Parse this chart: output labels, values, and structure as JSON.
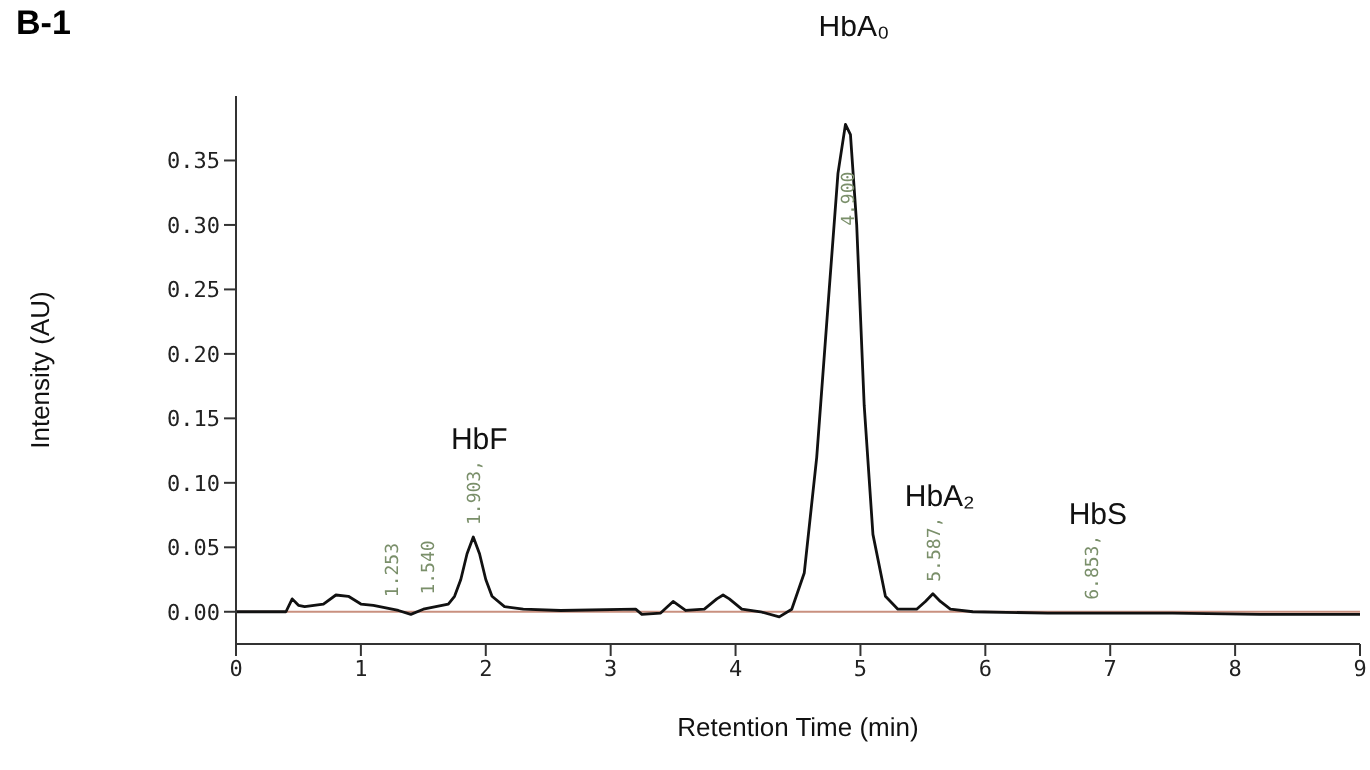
{
  "chart_data": {
    "type": "line",
    "title": "B-1",
    "xlabel": "Retention Time (min)",
    "ylabel": "Intensity (AU)",
    "x": [
      0,
      0.4,
      0.45,
      0.5,
      0.55,
      0.7,
      0.8,
      0.9,
      1.0,
      1.1,
      1.3,
      1.4,
      1.5,
      1.6,
      1.7,
      1.75,
      1.8,
      1.85,
      1.9,
      1.95,
      2.0,
      2.05,
      2.15,
      2.3,
      2.6,
      3.2,
      3.25,
      3.4,
      3.5,
      3.6,
      3.75,
      3.85,
      3.9,
      3.95,
      4.05,
      4.2,
      4.35,
      4.45,
      4.55,
      4.65,
      4.75,
      4.82,
      4.88,
      4.92,
      4.97,
      5.03,
      5.1,
      5.2,
      5.3,
      5.45,
      5.52,
      5.58,
      5.64,
      5.72,
      5.9,
      6.5,
      7.5,
      8.2,
      9
    ],
    "series": [
      {
        "color": "#111111",
        "values": [
          0,
          0,
          0.01,
          0.005,
          0.004,
          0.006,
          0.013,
          0.012,
          0.006,
          0.005,
          0.001,
          -0.002,
          0.002,
          0.004,
          0.006,
          0.012,
          0.025,
          0.045,
          0.058,
          0.045,
          0.025,
          0.012,
          0.004,
          0.002,
          0.001,
          0.002,
          -0.002,
          -0.001,
          0.008,
          0.001,
          0.002,
          0.01,
          0.013,
          0.01,
          0.002,
          0,
          -0.004,
          0.002,
          0.03,
          0.12,
          0.25,
          0.34,
          0.378,
          0.37,
          0.3,
          0.16,
          0.06,
          0.012,
          0.002,
          0.002,
          0.008,
          0.014,
          0.008,
          0.002,
          0,
          -0.001,
          -0.001,
          -0.002,
          -0.002
        ]
      }
    ],
    "xlim": [
      0,
      9
    ],
    "xticks": [
      0,
      1,
      2,
      3,
      4,
      5,
      6,
      7,
      8,
      9
    ],
    "ylim": [
      -0.025,
      0.4
    ],
    "yticks": [
      {
        "value": 0,
        "label": "0.00"
      },
      {
        "value": 0.05,
        "label": "0.05"
      },
      {
        "value": 0.1,
        "label": "0.10"
      },
      {
        "value": 0.15,
        "label": "0.15"
      },
      {
        "value": 0.2,
        "label": "0.20"
      },
      {
        "value": 0.25,
        "label": "0.25"
      },
      {
        "value": 0.3,
        "label": "0.30"
      },
      {
        "value": 0.35,
        "label": "0.35"
      }
    ],
    "ref_lines": [
      {
        "axis": "y",
        "value": 0,
        "color": "#c9907f"
      }
    ],
    "annotations": [
      {
        "text": "HbF",
        "x": 1.9,
        "y": 0.058
      },
      {
        "text": "HbA₀",
        "x": 4.9,
        "y": 0.378
      },
      {
        "text": "HbA₂",
        "x": 5.587,
        "y": 0.014
      },
      {
        "text": "HbS",
        "x": 6.853,
        "y": 0
      },
      {
        "text": "1.253",
        "x": 1.253,
        "y": 0.002
      },
      {
        "text": "1.540",
        "x": 1.54,
        "y": 0.004
      },
      {
        "text": "1.903,",
        "x": 1.903,
        "y": 0.058
      },
      {
        "text": "4.900",
        "x": 4.9,
        "y": 0.29
      },
      {
        "text": "5.587,",
        "x": 5.587,
        "y": 0.014
      },
      {
        "text": "6.853,",
        "x": 6.853,
        "y": 0
      }
    ],
    "grid": false,
    "legend": false,
    "marker": "none",
    "line_style": "solid"
  }
}
